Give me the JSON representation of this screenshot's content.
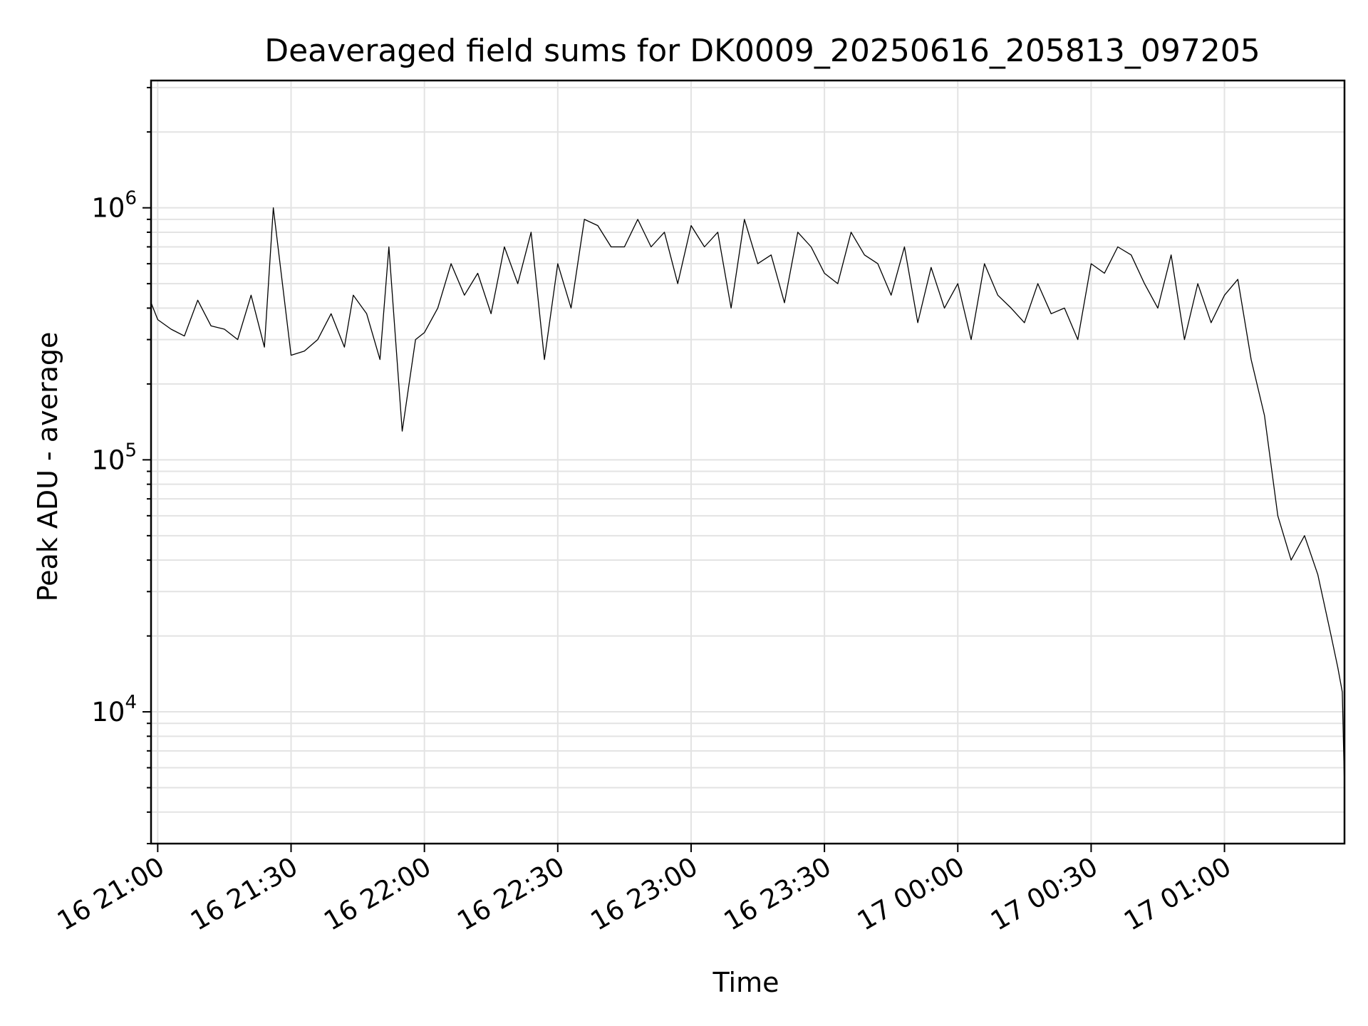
{
  "chart_data": {
    "type": "line",
    "title": "Deaveraged field sums for DK0009_20250616_205813_097205",
    "xlabel": "Time",
    "ylabel": "Peak ADU - average",
    "yscale": "log",
    "ylim": [
      3000,
      3200000
    ],
    "xlim": [
      "2025-06-16T20:58:30",
      "2025-06-17T01:27:00"
    ],
    "grid": true,
    "legend": "none",
    "line_color": "#000000",
    "x_ticks": [
      {
        "t": "2025-06-16T21:00:00",
        "label": "16 21:00"
      },
      {
        "t": "2025-06-16T21:30:00",
        "label": "16 21:30"
      },
      {
        "t": "2025-06-16T22:00:00",
        "label": "16 22:00"
      },
      {
        "t": "2025-06-16T22:30:00",
        "label": "16 22:30"
      },
      {
        "t": "2025-06-16T23:00:00",
        "label": "16 23:00"
      },
      {
        "t": "2025-06-16T23:30:00",
        "label": "16 23:30"
      },
      {
        "t": "2025-06-17T00:00:00",
        "label": "17 00:00"
      },
      {
        "t": "2025-06-17T00:30:00",
        "label": "17 00:30"
      },
      {
        "t": "2025-06-17T01:00:00",
        "label": "17 01:00"
      }
    ],
    "y_ticks": [
      {
        "value": 10000,
        "base": "10",
        "exp": "4"
      },
      {
        "value": 100000,
        "base": "10",
        "exp": "5"
      },
      {
        "value": 1000000,
        "base": "10",
        "exp": "6"
      }
    ],
    "series": [
      {
        "x": [
          "2025-06-16T20:58:30",
          "2025-06-16T21:00:00",
          "2025-06-16T21:03:00",
          "2025-06-16T21:06:00",
          "2025-06-16T21:09:00",
          "2025-06-16T21:12:00",
          "2025-06-16T21:15:00",
          "2025-06-16T21:18:00",
          "2025-06-16T21:21:00",
          "2025-06-16T21:24:00",
          "2025-06-16T21:26:00",
          "2025-06-16T21:30:00",
          "2025-06-16T21:33:00",
          "2025-06-16T21:36:00",
          "2025-06-16T21:39:00",
          "2025-06-16T21:42:00",
          "2025-06-16T21:44:00",
          "2025-06-16T21:47:00",
          "2025-06-16T21:50:00",
          "2025-06-16T21:52:00",
          "2025-06-16T21:55:00",
          "2025-06-16T21:58:00",
          "2025-06-16T22:00:00",
          "2025-06-16T22:03:00",
          "2025-06-16T22:06:00",
          "2025-06-16T22:09:00",
          "2025-06-16T22:12:00",
          "2025-06-16T22:15:00",
          "2025-06-16T22:18:00",
          "2025-06-16T22:21:00",
          "2025-06-16T22:24:00",
          "2025-06-16T22:27:00",
          "2025-06-16T22:30:00",
          "2025-06-16T22:33:00",
          "2025-06-16T22:36:00",
          "2025-06-16T22:39:00",
          "2025-06-16T22:42:00",
          "2025-06-16T22:45:00",
          "2025-06-16T22:48:00",
          "2025-06-16T22:51:00",
          "2025-06-16T22:54:00",
          "2025-06-16T22:57:00",
          "2025-06-16T23:00:00",
          "2025-06-16T23:03:00",
          "2025-06-16T23:06:00",
          "2025-06-16T23:09:00",
          "2025-06-16T23:12:00",
          "2025-06-16T23:15:00",
          "2025-06-16T23:18:00",
          "2025-06-16T23:21:00",
          "2025-06-16T23:24:00",
          "2025-06-16T23:27:00",
          "2025-06-16T23:30:00",
          "2025-06-16T23:33:00",
          "2025-06-16T23:36:00",
          "2025-06-16T23:39:00",
          "2025-06-16T23:42:00",
          "2025-06-16T23:45:00",
          "2025-06-16T23:48:00",
          "2025-06-16T23:51:00",
          "2025-06-16T23:54:00",
          "2025-06-16T23:57:00",
          "2025-06-17T00:00:00",
          "2025-06-17T00:03:00",
          "2025-06-17T00:06:00",
          "2025-06-17T00:09:00",
          "2025-06-17T00:12:00",
          "2025-06-17T00:15:00",
          "2025-06-17T00:18:00",
          "2025-06-17T00:21:00",
          "2025-06-17T00:24:00",
          "2025-06-17T00:27:00",
          "2025-06-17T00:30:00",
          "2025-06-17T00:33:00",
          "2025-06-17T00:36:00",
          "2025-06-17T00:39:00",
          "2025-06-17T00:42:00",
          "2025-06-17T00:45:00",
          "2025-06-17T00:48:00",
          "2025-06-17T00:51:00",
          "2025-06-17T00:54:00",
          "2025-06-17T00:57:00",
          "2025-06-17T01:00:00",
          "2025-06-17T01:03:00",
          "2025-06-17T01:06:00",
          "2025-06-17T01:09:00",
          "2025-06-17T01:12:00",
          "2025-06-17T01:15:00",
          "2025-06-17T01:18:00",
          "2025-06-17T01:21:00",
          "2025-06-17T01:24:00",
          "2025-06-17T01:25:30",
          "2025-06-17T01:26:30",
          "2025-06-17T01:27:00"
        ],
        "y": [
          420000,
          360000,
          330000,
          310000,
          430000,
          340000,
          330000,
          300000,
          450000,
          280000,
          1000000,
          260000,
          270000,
          300000,
          380000,
          280000,
          450000,
          380000,
          250000,
          700000,
          130000,
          300000,
          320000,
          400000,
          600000,
          450000,
          550000,
          380000,
          700000,
          500000,
          800000,
          250000,
          600000,
          400000,
          900000,
          850000,
          700000,
          700000,
          900000,
          700000,
          800000,
          500000,
          850000,
          700000,
          800000,
          400000,
          900000,
          600000,
          650000,
          420000,
          800000,
          700000,
          550000,
          500000,
          800000,
          650000,
          600000,
          450000,
          700000,
          350000,
          580000,
          400000,
          500000,
          300000,
          600000,
          450000,
          400000,
          350000,
          500000,
          380000,
          400000,
          300000,
          600000,
          550000,
          700000,
          650000,
          500000,
          400000,
          650000,
          300000,
          500000,
          350000,
          450000,
          520000,
          250000,
          150000,
          60000,
          40000,
          50000,
          35000,
          20000,
          15000,
          12000,
          5000
        ]
      }
    ]
  }
}
